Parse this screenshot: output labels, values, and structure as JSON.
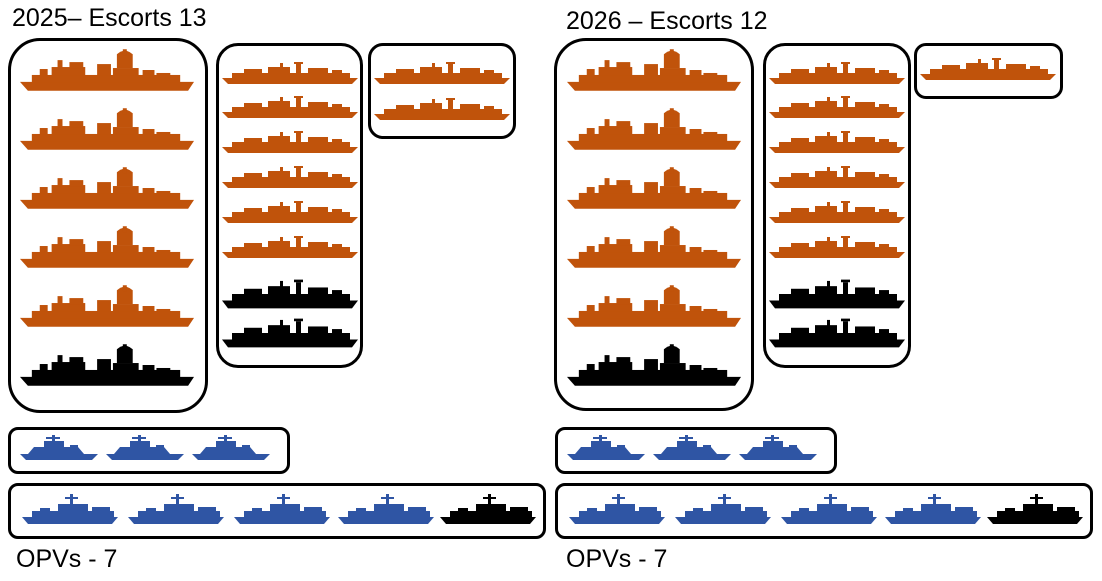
{
  "colors": {
    "orange": "#C0530B",
    "blue": "#2F55A4",
    "black": "#000000"
  },
  "panels": [
    {
      "title": "2025– Escorts 13",
      "footer": "OPVs - 7",
      "destroyers": [
        "orange",
        "orange",
        "orange",
        "orange",
        "orange",
        "black"
      ],
      "frigates": [
        "orange",
        "orange",
        "orange",
        "orange",
        "orange",
        "orange",
        "black",
        "black"
      ],
      "new_frigates": [
        "orange",
        "orange"
      ],
      "patrol": [
        "blue",
        "blue",
        "blue"
      ],
      "opvs": [
        "blue",
        "blue",
        "blue",
        "blue",
        "black"
      ]
    },
    {
      "title": "2026 – Escorts 12",
      "footer": "OPVs - 7",
      "destroyers": [
        "orange",
        "orange",
        "orange",
        "orange",
        "orange",
        "black"
      ],
      "frigates": [
        "orange",
        "orange",
        "orange",
        "orange",
        "orange",
        "orange",
        "black",
        "black"
      ],
      "new_frigates": [
        "orange"
      ],
      "patrol": [
        "blue",
        "blue",
        "blue"
      ],
      "opvs": [
        "blue",
        "blue",
        "blue",
        "blue",
        "black"
      ]
    }
  ]
}
